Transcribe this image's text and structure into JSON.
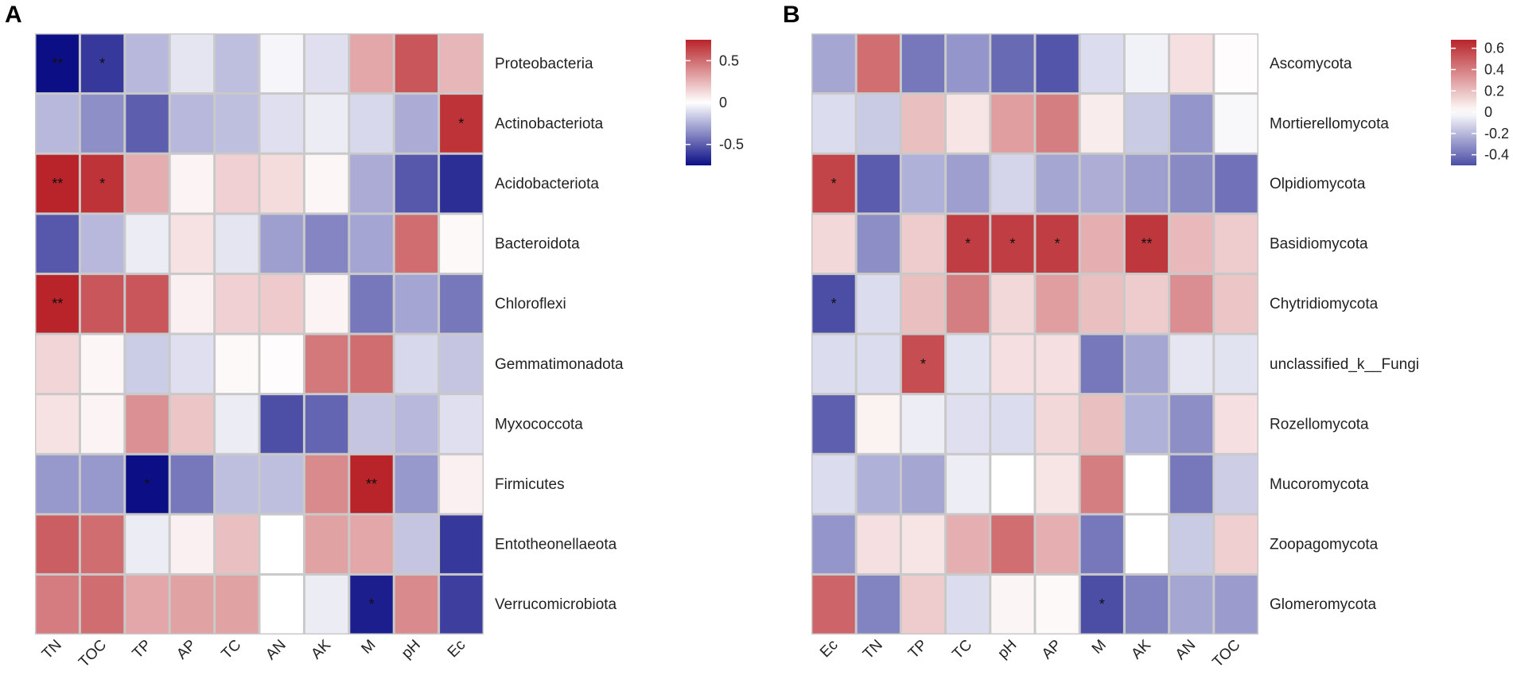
{
  "chart_data": [
    {
      "panel": "A",
      "type": "heatmap",
      "rows": [
        "Proteobacteria",
        "Actinobacteriota",
        "Acidobacteriota",
        "Bacteroidota",
        "Chloroflexi",
        "Gemmatimonadota",
        "Myxococcota",
        "Firmicutes",
        "Entotheonellaeota",
        "Verrucomicrobiota"
      ],
      "cols": [
        "TN",
        "TOC",
        "TP",
        "AP",
        "TC",
        "AN",
        "AK",
        "M",
        "pH",
        "Ec"
      ],
      "values": [
        [
          -0.85,
          -0.62,
          -0.22,
          -0.08,
          -0.2,
          -0.03,
          -0.1,
          0.3,
          0.58,
          0.25
        ],
        [
          -0.22,
          -0.35,
          -0.5,
          -0.22,
          -0.2,
          -0.1,
          -0.06,
          -0.12,
          -0.26,
          0.7
        ],
        [
          0.75,
          0.7,
          0.28,
          0.04,
          0.16,
          0.12,
          0.03,
          -0.26,
          -0.52,
          -0.65
        ],
        [
          -0.52,
          -0.22,
          -0.06,
          0.1,
          -0.08,
          -0.3,
          -0.38,
          -0.28,
          0.5,
          0.02
        ],
        [
          0.78,
          0.58,
          0.58,
          0.05,
          0.16,
          0.18,
          0.04,
          -0.42,
          -0.28,
          -0.42
        ],
        [
          0.14,
          0.03,
          -0.16,
          -0.1,
          0.02,
          0.01,
          0.46,
          0.5,
          -0.12,
          -0.18
        ],
        [
          0.1,
          0.04,
          0.38,
          0.2,
          -0.06,
          -0.55,
          -0.48,
          -0.18,
          -0.22,
          -0.1
        ],
        [
          -0.32,
          -0.32,
          -0.8,
          -0.42,
          -0.2,
          -0.2,
          0.4,
          0.75,
          -0.32,
          0.05
        ],
        [
          0.55,
          0.5,
          -0.06,
          0.05,
          0.22,
          0.0,
          0.32,
          0.3,
          -0.18,
          -0.62
        ],
        [
          0.45,
          0.5,
          0.3,
          0.32,
          0.32,
          0.0,
          -0.06,
          -0.7,
          0.4,
          -0.6
        ]
      ],
      "significance": [
        [
          "**",
          "*",
          "",
          "",
          "",
          "",
          "",
          "",
          "",
          ""
        ],
        [
          "",
          "",
          "",
          "",
          "",
          "",
          "",
          "",
          "",
          "*"
        ],
        [
          "**",
          "*",
          "",
          "",
          "",
          "",
          "",
          "",
          "",
          ""
        ],
        [
          "",
          "",
          "",
          "",
          "",
          "",
          "",
          "",
          "",
          ""
        ],
        [
          "**",
          "",
          "",
          "",
          "",
          "",
          "",
          "",
          "",
          ""
        ],
        [
          "",
          "",
          "",
          "",
          "",
          "",
          "",
          "",
          "",
          ""
        ],
        [
          "",
          "",
          "",
          "",
          "",
          "",
          "",
          "",
          "",
          ""
        ],
        [
          "",
          "",
          "*",
          "",
          "",
          "",
          "",
          "**",
          "",
          ""
        ],
        [
          "",
          "",
          "",
          "",
          "",
          "",
          "",
          "",
          "",
          ""
        ],
        [
          "",
          "",
          "",
          "",
          "",
          "",
          "",
          "*",
          "",
          ""
        ]
      ],
      "colorbar": {
        "min": -0.75,
        "max": 0.75,
        "ticks": [
          0.5,
          0,
          -0.5
        ],
        "tick_labels": [
          "0.5",
          "0",
          "-0.5"
        ]
      },
      "colors": {
        "low": "#0c0e86",
        "mid": "#ffffff",
        "high": "#b8242a"
      }
    },
    {
      "panel": "B",
      "type": "heatmap",
      "rows": [
        "Ascomycota",
        "Mortierellomycota",
        "Olpidiomycota",
        "Basidiomycota",
        "Chytridiomycota",
        "unclassified_k__Fungi",
        "Rozellomycota",
        "Mucoromycota",
        "Zoopagomycota",
        "Glomeromycota"
      ],
      "cols": [
        "Ec",
        "TN",
        "TP",
        "TC",
        "pH",
        "AP",
        "M",
        "AK",
        "AN",
        "TOC"
      ],
      "values": [
        [
          -0.25,
          0.45,
          -0.38,
          -0.3,
          -0.42,
          -0.48,
          -0.1,
          -0.04,
          0.1,
          0.01
        ],
        [
          -0.1,
          -0.15,
          0.2,
          0.08,
          0.3,
          0.4,
          0.06,
          -0.15,
          -0.3,
          -0.02
        ],
        [
          0.58,
          -0.46,
          -0.22,
          -0.27,
          -0.12,
          -0.25,
          -0.23,
          -0.27,
          -0.33,
          -0.4
        ],
        [
          0.12,
          -0.32,
          0.16,
          0.6,
          0.6,
          0.6,
          0.25,
          0.62,
          0.22,
          0.16
        ],
        [
          -0.5,
          -0.1,
          0.2,
          0.4,
          0.12,
          0.3,
          0.2,
          0.16,
          0.35,
          0.18
        ],
        [
          -0.1,
          -0.1,
          0.55,
          -0.08,
          0.1,
          0.1,
          -0.38,
          -0.25,
          -0.07,
          -0.08
        ],
        [
          -0.45,
          0.04,
          -0.05,
          -0.09,
          -0.1,
          0.12,
          0.2,
          -0.22,
          -0.32,
          0.1
        ],
        [
          -0.1,
          -0.22,
          -0.25,
          -0.05,
          0.0,
          0.08,
          0.4,
          0.0,
          -0.38,
          -0.14
        ],
        [
          -0.3,
          0.1,
          0.08,
          0.25,
          0.45,
          0.25,
          -0.38,
          0.0,
          -0.15,
          0.15
        ],
        [
          0.48,
          -0.35,
          0.16,
          -0.1,
          0.03,
          0.02,
          -0.5,
          -0.35,
          -0.25,
          -0.28
        ]
      ],
      "significance": [
        [
          "",
          "",
          "",
          "",
          "",
          "",
          "",
          "",
          "",
          ""
        ],
        [
          "",
          "",
          "",
          "",
          "",
          "",
          "",
          "",
          "",
          ""
        ],
        [
          "*",
          "",
          "",
          "",
          "",
          "",
          "",
          "",
          "",
          ""
        ],
        [
          "",
          "",
          "",
          "*",
          "*",
          "*",
          "",
          "**",
          "",
          ""
        ],
        [
          "*",
          "",
          "",
          "",
          "",
          "",
          "",
          "",
          "",
          ""
        ],
        [
          "",
          "",
          "*",
          "",
          "",
          "",
          "",
          "",
          "",
          ""
        ],
        [
          "",
          "",
          "",
          "",
          "",
          "",
          "",
          "",
          "",
          ""
        ],
        [
          "",
          "",
          "",
          "",
          "",
          "",
          "",
          "",
          "",
          ""
        ],
        [
          "",
          "",
          "",
          "",
          "",
          "",
          "",
          "",
          "",
          ""
        ],
        [
          "",
          "",
          "",
          "",
          "",
          "",
          "*",
          "",
          "",
          ""
        ]
      ],
      "colorbar": {
        "min": -0.5,
        "max": 0.68,
        "ticks": [
          0.6,
          0.4,
          0.2,
          0,
          -0.2,
          -0.4
        ],
        "tick_labels": [
          "0.6",
          "0.4",
          "0.2",
          "0",
          "-0.2",
          "-0.4"
        ]
      },
      "colors": {
        "low": "#0c0e86",
        "mid": "#ffffff",
        "high": "#b8242a"
      }
    }
  ]
}
